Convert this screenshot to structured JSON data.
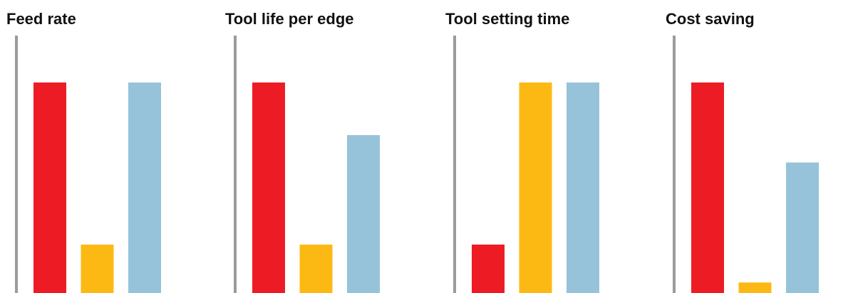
{
  "colors": {
    "red": "#ED1C24",
    "yellow": "#FDB913",
    "blue": "#96C3DA",
    "axis": "#9B9B9D"
  },
  "chart_data": [
    {
      "type": "bar",
      "title": "Feed rate",
      "categories": [
        "",
        "",
        ""
      ],
      "values": [
        100,
        23,
        100
      ],
      "bar_colors": [
        "#ED1C24",
        "#FDB913",
        "#96C3DA"
      ],
      "ylim": [
        0,
        100
      ],
      "grid": false,
      "legend": "none"
    },
    {
      "type": "bar",
      "title": "Tool life per edge",
      "categories": [
        "",
        "",
        ""
      ],
      "values": [
        100,
        23,
        75
      ],
      "bar_colors": [
        "#ED1C24",
        "#FDB913",
        "#96C3DA"
      ],
      "ylim": [
        0,
        100
      ],
      "grid": false,
      "legend": "none"
    },
    {
      "type": "bar",
      "title": "Tool setting time",
      "categories": [
        "",
        "",
        ""
      ],
      "values": [
        23,
        100,
        100
      ],
      "bar_colors": [
        "#ED1C24",
        "#FDB913",
        "#96C3DA"
      ],
      "ylim": [
        0,
        100
      ],
      "grid": false,
      "legend": "none"
    },
    {
      "type": "bar",
      "title": "Cost saving",
      "categories": [
        "",
        "",
        ""
      ],
      "values": [
        100,
        5,
        62
      ],
      "bar_colors": [
        "#ED1C24",
        "#FDB913",
        "#96C3DA"
      ],
      "ylim": [
        0,
        100
      ],
      "grid": false,
      "legend": "none"
    }
  ]
}
